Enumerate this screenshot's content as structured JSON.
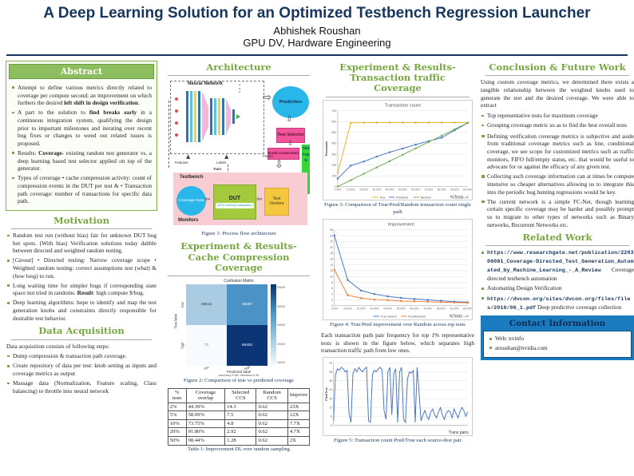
{
  "colors": {
    "navy": "#17365d",
    "heading_green": "#76a73f",
    "abstract_header_bg": "#8cbd5e",
    "contact_blue": "#1b7bbf",
    "series_true": "#e6b222",
    "series_predicted": "#4472c4",
    "series_random": "#6fa84f",
    "series_pred_random": "#ed7d31",
    "cm_dark": "#0b3575",
    "testbench_pink": "#f7cdd3",
    "magenta": "#f2549c",
    "cyan": "#29b6e8",
    "dut_green": "#a3c93d",
    "vector_yellow": "#f5c73e",
    "testgen_green": "#38d438"
  },
  "header": {
    "title": "A Deep Learning Solution for an Optimized Testbench Regression Launcher",
    "author": "Abhishek Roushan",
    "affiliation": "GPU DV, Hardware Engineering"
  },
  "abstract": {
    "title": "Abstract",
    "items": [
      [
        [
          "Attempt to define various metrics directly related to coverage per compute second; an improvement on which furthers the desired ",
          ""
        ],
        [
          "left shift in design verification",
          "b"
        ],
        [
          ".",
          ""
        ]
      ],
      [
        [
          "A part to the solution to ",
          ""
        ],
        [
          "find breaks early",
          "b"
        ],
        [
          " in a continuous integration system, qualifying the design prior to important milestones and iterating over recent bug fixes or changes to weed out related issues is proposed.",
          ""
        ]
      ],
      [
        [
          "Results: ",
          ""
        ],
        [
          "Coverage",
          "b"
        ],
        [
          "- existing random test generator vs. a deep learning based test selector applied on top of the generator.",
          ""
        ]
      ],
      [
        [
          "Types of coverage • cache compression activity: count of compression events in the DUT per test & • Transaction path coverage: number of transactions for specific data path.",
          ""
        ]
      ]
    ]
  },
  "motivation": {
    "title": "Motivation",
    "items": [
      [
        [
          "Random test run (without bias) fair for unknown DUT bug hot spots. (With bias) Verification solutions today dabble between directed and weighted random testing.",
          ""
        ]
      ],
      [
        [
          "[",
          ""
        ],
        [
          "Caveat",
          "i"
        ],
        [
          "] • Directed testing: Narrow coverage scope • Weighted random testing: correct assumptions test (",
          ""
        ],
        [
          "what",
          "i"
        ],
        [
          ") & (",
          ""
        ],
        [
          "how long",
          "i"
        ],
        [
          ") to run.",
          ""
        ]
      ],
      [
        [
          "Long waiting time for simpler bugs if corresponding state space not tried in randoms. ",
          ""
        ],
        [
          "Result",
          "b"
        ],
        [
          ": high compute $/bug.",
          ""
        ]
      ],
      [
        [
          "Deep learning algorithms: hope to identify and map the test generation knobs and constraints directly responsible for desirable test behavior.",
          ""
        ]
      ]
    ]
  },
  "data_acquisition": {
    "title": "Data Acquisition",
    "intro": "Data acquisition consists of following steps:",
    "items": [
      [
        [
          "Dump compression & transaction path coverage.",
          ""
        ]
      ],
      [
        [
          "Create repository of data per test: knob setting as inputs and coverage metrics as output",
          ""
        ]
      ],
      [
        [
          "Massage data (Normalization, Feature scaling, Class balancing) to throttle into neural network",
          ""
        ]
      ]
    ]
  },
  "architecture": {
    "title": "Architecture",
    "caption": "Figure 1: Process flow architecture",
    "labels": {
      "neural_network": "Neural Network",
      "prediction": "Prediction",
      "test_selector": "Test Selector",
      "knob_constraints": "Knob constraints",
      "testgen": "TESTGEN",
      "testbench": "Testbench",
      "coverage_data": "Coverage Data",
      "dut": "DUT",
      "dut_sub": "(GPU memory subsystem)",
      "test_vectors": "Test Vectors",
      "monitors": "Monitors",
      "features": "Features",
      "labels": "Labels",
      "predict": "Predict",
      "train": "Train"
    }
  },
  "cache_section": {
    "title": "Experiment & Results-Cache Compression Coverage",
    "fig2_caption": "Figure 2: Comparison of true vs predicted coverage",
    "table": {
      "headers": [
        "% tests",
        "Coverage overlap",
        "Selected CCS",
        "Random CCS",
        "Improve"
      ],
      "rows": [
        [
          "2%",
          "44.39%",
          "14.3",
          "0.62",
          "23X"
        ],
        [
          "5%",
          "58.09%",
          "7.5",
          "0.62",
          "12X"
        ],
        [
          "10%",
          "73.75%",
          "4.8",
          "0.62",
          "7.7X"
        ],
        [
          "20%",
          "91.80%",
          "2.92",
          "0.62",
          "4.7X"
        ],
        [
          "50%",
          "98.44%",
          "1.28",
          "0.62",
          "2X"
        ]
      ],
      "caption": "Table 1: Improvement DL over random sampling"
    }
  },
  "traffic_section": {
    "title": "Experiment & Results-Transaction traffic Coverage",
    "fig3_caption": "Figure 3: Comparison of True/Pred/Random transaction count single path",
    "fig4_caption": "Figure 4: True/Pred improvement over Random across top tests",
    "paragraph": "Each transaction path pair frequency for top 1% representative tests is shown in the figure below, which separates high transaction traffic path from low ones.",
    "fig5_caption": "Figure 5: Transaction count Pred/True each source-dest pair"
  },
  "conclusion": {
    "title": "Conclusion & Future Work",
    "intro": "Using custom coverage metrics, we determined there exists a tangible relationship between the weighted knobs used to generate the test and the desired coverage. We were able to extract",
    "items_dash": [
      [
        [
          "Top representative tests for maximum coverage",
          ""
        ]
      ],
      [
        [
          "Grouping coverage metric so as to find the best overall tests",
          ""
        ]
      ]
    ],
    "items_sq": [
      [
        [
          "Defining verification coverage metrics is subjective and aside from traditional coverage metrics such as line, conditional coverage, we see scope for customized metrics such as traffic monitors, FIFO full/empty status, etc. that would be useful to advocate for or against the efficacy of any given test.",
          ""
        ]
      ],
      [
        [
          "Collecting such coverage information can at times be compute intensive so cheaper alternatives allowing us to integrate this into the periodic bug hunting regressions would be key.",
          ""
        ]
      ],
      [
        [
          "The current network is a simple FC-Net, though learning certain specific coverage may be harder and possibly prompt us to migrate to other types of networks such as Binary networks, Recurrent Networks etc.",
          ""
        ]
      ]
    ]
  },
  "related": {
    "title": "Related Work",
    "items": [
      [
        [
          "https://www.researchgate.net/publication/220306081_Coverage-Directed_Test_Generation_Automated_by_Machine_Learning_-_A_Review",
          "m"
        ],
        [
          " Coverage directed testbench automation",
          ""
        ]
      ],
      [
        [
          "Automating Design Verification",
          ""
        ]
      ],
      [
        [
          "https://dvcon.org/sites/dvcon.org/files/files/2018/06_1.pdf",
          "m"
        ],
        [
          " Deep predictive coverage collection",
          ""
        ]
      ]
    ]
  },
  "contact": {
    "title": "Contact Information",
    "items": [
      [
        [
          "Web: nvinfo",
          ""
        ]
      ],
      [
        [
          "aroushan@nvidia.com",
          ""
        ]
      ]
    ]
  },
  "chart_data": [
    {
      "type": "line",
      "title": "Transaction count",
      "ylabel": "Thousands",
      "xlabel": "%Tests-->",
      "x": [
        "0.00%",
        "10.00%",
        "20.00%",
        "30.00%",
        "40.00%",
        "50.00%",
        "60.00%",
        "70.00%",
        "80.00%",
        "90.00%",
        "100.00%"
      ],
      "ylim": [
        0,
        700
      ],
      "ystep": 100,
      "grid": true,
      "legend_position": "bottom",
      "series": [
        {
          "name": "True",
          "color": "#e6b222",
          "values": [
            130,
            588,
            590,
            590,
            590,
            590,
            590,
            590,
            590,
            590,
            590
          ]
        },
        {
          "name": "Predicted",
          "color": "#4472c4",
          "values": [
            75,
            195,
            232,
            278,
            318,
            352,
            388,
            420,
            452,
            520,
            588
          ]
        },
        {
          "name": "Random",
          "color": "#6fa84f",
          "values": [
            2,
            60,
            119,
            178,
            236,
            295,
            354,
            412,
            471,
            530,
            588
          ]
        }
      ]
    },
    {
      "type": "line",
      "title": "Improvement",
      "ylabel": "",
      "xlabel": "%Tests -->",
      "x": [
        "1.00%",
        "10.00%",
        "20.00%",
        "30.00%",
        "40.00%",
        "50.00%",
        "60.00%",
        "70.00%",
        "80.00%",
        "90.00%",
        "100.00%"
      ],
      "ylim": [
        0,
        26
      ],
      "ystep": 2,
      "grid": true,
      "legend_position": "bottom",
      "series": [
        {
          "name": "True random",
          "color": "#4472c4",
          "values": [
            24,
            8.8,
            5.2,
            4,
            3.2,
            2.7,
            2.3,
            2,
            1.7,
            1.4,
            1.2
          ]
        },
        {
          "name": "Pred/Random",
          "color": "#ed7d31",
          "values": [
            12.3,
            3.6,
            2.6,
            2.1,
            1.9,
            1.6,
            1.5,
            1.35,
            1.25,
            1.1,
            1
          ]
        }
      ]
    },
    {
      "type": "line",
      "title": "",
      "ylabel": "Pred/True",
      "xlabel": "Trans pairs",
      "x": [],
      "ylim": [
        0,
        42
      ],
      "ystep": 6,
      "grid": true,
      "legend_position": "none",
      "series": [
        {
          "name": "Pred/True",
          "color": "#4472c4",
          "values": [
            3,
            34,
            38,
            37,
            39,
            38,
            36,
            37,
            8,
            2,
            35,
            38,
            36,
            39,
            37,
            36,
            38,
            39,
            3,
            2,
            34,
            37,
            36,
            38,
            39,
            37,
            10,
            4,
            36,
            39,
            7,
            35,
            38,
            2,
            36,
            39,
            4,
            2,
            31,
            36,
            35,
            37,
            2,
            39,
            22,
            3,
            7,
            10,
            6,
            4,
            9,
            11,
            7,
            5,
            9,
            12,
            7,
            4,
            8,
            10,
            9,
            5,
            11,
            8,
            5,
            9,
            12,
            10,
            6,
            9
          ]
        }
      ]
    },
    {
      "type": "heatmap",
      "title": "Confusion Matrix",
      "ylabel": "True label",
      "xlabel": "Predicted label",
      "sub_label": "accuracy=0.66; misclass=0.34",
      "row_labels": [
        "low",
        "high"
      ],
      "col_labels": [
        "low",
        "high"
      ],
      "cells": [
        [
          "30613",
          "45267"
        ],
        [
          "72",
          "56452"
        ]
      ],
      "cell_colors": [
        [
          "#a9cce3",
          "#4b93c6"
        ],
        [
          "#f7fbff",
          "#0b3575"
        ]
      ],
      "cell_text_colors": [
        [
          "#333333",
          "#ffffff"
        ],
        [
          "#777777",
          "#ffffff"
        ]
      ],
      "colorbar_ticks": [
        "50000",
        "40000",
        "30000",
        "20000",
        "10000"
      ]
    }
  ]
}
